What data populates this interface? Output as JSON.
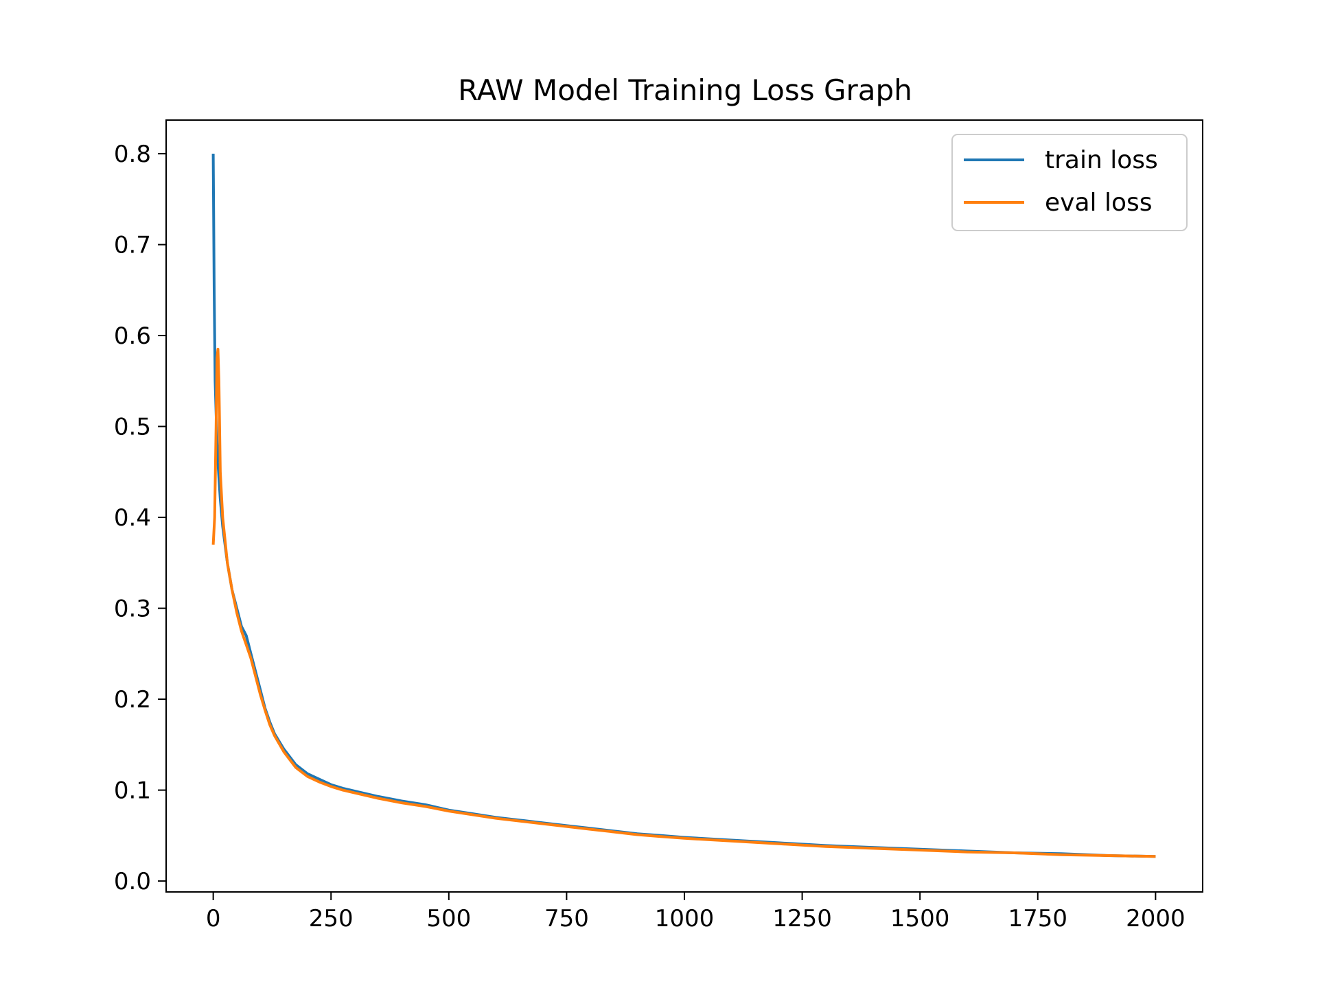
{
  "chart_data": {
    "type": "line",
    "title": "RAW Model Training Loss Graph",
    "xlabel": "",
    "ylabel": "",
    "xlim": [
      -100,
      2100
    ],
    "ylim": [
      -0.012,
      0.837
    ],
    "xticks": [
      0,
      250,
      500,
      750,
      1000,
      1250,
      1500,
      1750,
      2000
    ],
    "xtick_labels": [
      "0",
      "250",
      "500",
      "750",
      "1000",
      "1250",
      "1500",
      "1750",
      "2000"
    ],
    "yticks": [
      0.0,
      0.1,
      0.2,
      0.3,
      0.4,
      0.5,
      0.6,
      0.7,
      0.8
    ],
    "ytick_labels": [
      "0.0",
      "0.1",
      "0.2",
      "0.3",
      "0.4",
      "0.5",
      "0.6",
      "0.7",
      "0.8"
    ],
    "grid": false,
    "legend": "top-right",
    "series": [
      {
        "name": "train loss",
        "color": "#1f77b4",
        "x": [
          0,
          2,
          4,
          7,
          10,
          15,
          20,
          30,
          40,
          50,
          60,
          70,
          80,
          90,
          100,
          110,
          120,
          130,
          150,
          175,
          200,
          225,
          250,
          275,
          300,
          350,
          400,
          450,
          500,
          550,
          600,
          650,
          700,
          750,
          800,
          850,
          900,
          950,
          1000,
          1100,
          1200,
          1300,
          1400,
          1500,
          1600,
          1700,
          1800,
          1900,
          2000
        ],
        "y": [
          0.8,
          0.65,
          0.55,
          0.5,
          0.46,
          0.42,
          0.39,
          0.35,
          0.32,
          0.3,
          0.28,
          0.27,
          0.25,
          0.23,
          0.21,
          0.19,
          0.175,
          0.162,
          0.145,
          0.128,
          0.118,
          0.112,
          0.106,
          0.102,
          0.099,
          0.093,
          0.088,
          0.084,
          0.078,
          0.074,
          0.07,
          0.067,
          0.064,
          0.061,
          0.058,
          0.055,
          0.052,
          0.05,
          0.048,
          0.045,
          0.042,
          0.039,
          0.037,
          0.035,
          0.033,
          0.031,
          0.03,
          0.028,
          0.027
        ]
      },
      {
        "name": "eval loss",
        "color": "#ff7f0e",
        "x": [
          0,
          3,
          6,
          8,
          10,
          12,
          15,
          20,
          30,
          40,
          50,
          60,
          70,
          80,
          90,
          100,
          110,
          120,
          130,
          150,
          175,
          200,
          225,
          250,
          275,
          300,
          350,
          400,
          450,
          500,
          550,
          600,
          650,
          700,
          750,
          800,
          850,
          900,
          950,
          1000,
          1100,
          1200,
          1300,
          1400,
          1500,
          1600,
          1700,
          1800,
          1900,
          2000
        ],
        "y": [
          0.37,
          0.4,
          0.5,
          0.575,
          0.585,
          0.55,
          0.45,
          0.4,
          0.35,
          0.32,
          0.295,
          0.275,
          0.26,
          0.245,
          0.225,
          0.205,
          0.188,
          0.172,
          0.16,
          0.142,
          0.125,
          0.115,
          0.109,
          0.104,
          0.1,
          0.097,
          0.091,
          0.086,
          0.082,
          0.077,
          0.073,
          0.069,
          0.066,
          0.063,
          0.06,
          0.057,
          0.054,
          0.051,
          0.049,
          0.047,
          0.044,
          0.041,
          0.038,
          0.036,
          0.034,
          0.032,
          0.031,
          0.029,
          0.028,
          0.027
        ]
      }
    ]
  }
}
